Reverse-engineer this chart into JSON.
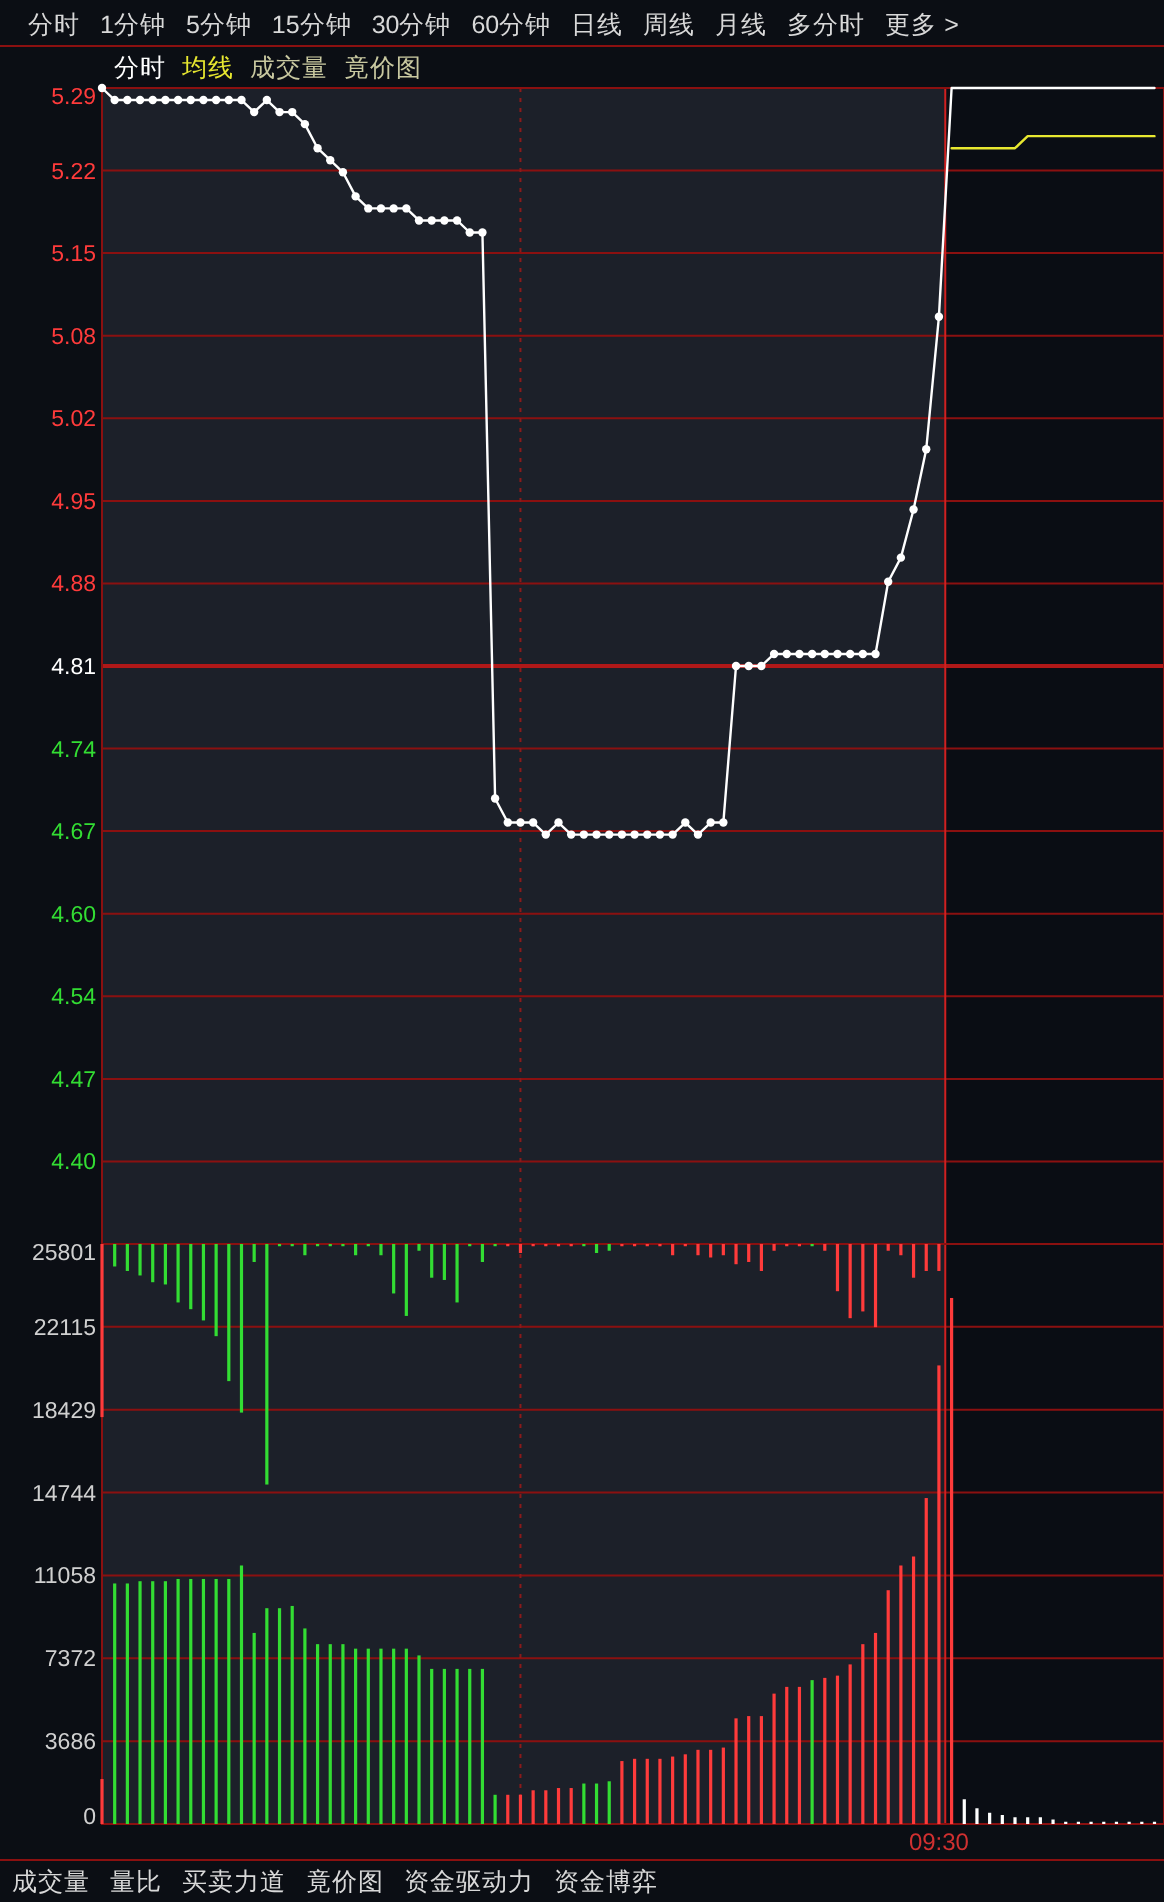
{
  "chart_data": [
    {
      "type": "other",
      "annotations": [
        "分时",
        "1分钟",
        "5分钟",
        "15分钟",
        "30分钟",
        "60分钟",
        "日线",
        "周线",
        "月线",
        "多分时",
        "更多 >"
      ]
    },
    {
      "type": "line",
      "tick_labels": "y",
      "legend": "top left",
      "grid": "y",
      "annotations": [
        "成交量",
        "竟价图"
      ],
      "categories": [
        null,
        null,
        null,
        null,
        null,
        null,
        null,
        null,
        null,
        null,
        null,
        null,
        null,
        null,
        null,
        null,
        null,
        null,
        null,
        null,
        null,
        null,
        null,
        null,
        null,
        null,
        null,
        null,
        null,
        null,
        null,
        null,
        null,
        null,
        null,
        null,
        null,
        null,
        null,
        null,
        null,
        null,
        null,
        null,
        null,
        null,
        null,
        null,
        null,
        null,
        null,
        null,
        null,
        null,
        null,
        null,
        null,
        null,
        null,
        null,
        null,
        null,
        null,
        null,
        null,
        null,
        null,
        null,
        null,
        null,
        null,
        null,
        null,
        null,
        null,
        null,
        null,
        null,
        null,
        null,
        null,
        null,
        null,
        null
      ],
      "ylim": [
        4.33,
        5.29
      ],
      "yticks": [
        {
          "value": 4.33,
          "label": null
        },
        {
          "value": 4.3986,
          "label": "4.40"
        },
        {
          "value": 4.4671,
          "label": "4.47"
        },
        {
          "value": 4.5357,
          "label": "4.54"
        },
        {
          "value": 4.6043,
          "label": "4.60"
        },
        {
          "value": 4.6729,
          "label": "4.67"
        },
        {
          "value": 4.7414,
          "label": "4.74"
        },
        4.81,
        {
          "value": 4.8786,
          "label": "4.88"
        },
        {
          "value": 4.9471,
          "label": "4.95"
        },
        {
          "value": 5.0157,
          "label": "5.02"
        },
        {
          "value": 5.0843,
          "label": "5.08"
        },
        {
          "value": 5.1529,
          "label": "5.15"
        },
        {
          "value": 5.2214,
          "label": "5.22"
        },
        5.29
      ],
      "ref_lines": [
        {
          "axis": "y",
          "value": 4.81,
          "color": "#b01818"
        }
      ],
      "series": [
        {
          "name": "分时",
          "color": "#ffffff",
          "marker": "circle",
          "values": [
            5.29,
            5.28,
            5.28,
            5.28,
            5.28,
            5.28,
            5.28,
            5.28,
            5.28,
            5.28,
            5.28,
            5.28,
            5.27,
            5.28,
            5.27,
            5.27,
            5.26,
            5.24,
            5.23,
            5.22,
            5.2,
            5.19,
            5.19,
            5.19,
            5.19,
            5.18,
            5.18,
            5.18,
            5.18,
            5.17,
            5.17,
            4.7,
            4.68,
            4.68,
            4.68,
            4.67,
            4.68,
            4.67,
            4.67,
            4.67,
            4.67,
            4.67,
            4.67,
            4.67,
            4.67,
            4.67,
            4.68,
            4.67,
            4.68,
            4.68,
            4.81,
            4.81,
            4.81,
            4.82,
            4.82,
            4.82,
            4.82,
            4.82,
            4.82,
            4.82,
            4.82,
            4.82,
            4.88,
            4.9,
            4.94,
            4.99,
            5.1,
            null,
            null,
            null,
            null,
            null,
            null,
            null,
            null,
            null,
            null,
            null,
            null,
            null,
            null,
            null,
            null,
            null
          ]
        },
        {
          "color": "#ffffff",
          "values": [
            null,
            null,
            null,
            null,
            null,
            null,
            null,
            null,
            null,
            null,
            null,
            null,
            null,
            null,
            null,
            null,
            null,
            null,
            null,
            null,
            null,
            null,
            null,
            null,
            null,
            null,
            null,
            null,
            null,
            null,
            null,
            null,
            null,
            null,
            null,
            null,
            null,
            null,
            null,
            null,
            null,
            null,
            null,
            null,
            null,
            null,
            null,
            null,
            null,
            null,
            null,
            null,
            null,
            null,
            null,
            null,
            null,
            null,
            null,
            null,
            null,
            null,
            null,
            null,
            null,
            null,
            5.1,
            5.29,
            5.29,
            5.29,
            5.29,
            5.29,
            5.29,
            5.29,
            5.29,
            5.29,
            5.29,
            5.29,
            5.29,
            5.29,
            5.29,
            5.29,
            5.29,
            5.29
          ]
        },
        {
          "name": "均线",
          "color": "#e8e830",
          "values": [
            null,
            null,
            null,
            null,
            null,
            null,
            null,
            null,
            null,
            null,
            null,
            null,
            null,
            null,
            null,
            null,
            null,
            null,
            null,
            null,
            null,
            null,
            null,
            null,
            null,
            null,
            null,
            null,
            null,
            null,
            null,
            null,
            null,
            null,
            null,
            null,
            null,
            null,
            null,
            null,
            null,
            null,
            null,
            null,
            null,
            null,
            null,
            null,
            null,
            null,
            null,
            null,
            null,
            null,
            null,
            null,
            null,
            null,
            null,
            null,
            null,
            null,
            null,
            null,
            null,
            null,
            null,
            5.24,
            5.24,
            5.24,
            5.24,
            5.24,
            5.24,
            5.25,
            5.25,
            5.25,
            5.25,
            5.25,
            5.25,
            5.25,
            5.25,
            5.25,
            5.25,
            5.25
          ]
        }
      ]
    },
    {
      "type": "bar",
      "grid": "y",
      "categories": [
        null,
        null,
        null,
        null,
        null,
        null,
        null,
        null,
        null,
        null,
        null,
        null,
        null,
        null,
        null,
        null,
        null,
        null,
        null,
        null,
        null,
        null,
        null,
        null,
        null,
        null,
        null,
        null,
        null,
        null,
        null,
        null,
        null,
        null,
        null,
        null,
        null,
        null,
        null,
        null,
        null,
        null,
        null,
        null,
        null,
        null,
        null,
        null,
        null,
        null,
        null,
        null,
        null,
        null,
        null,
        null,
        null,
        null,
        null,
        null,
        null,
        null,
        null,
        null,
        null,
        null,
        "09:30",
        null,
        null,
        null,
        null,
        null,
        null,
        null,
        null,
        null,
        null,
        null,
        null,
        null,
        null,
        null,
        null,
        null
      ],
      "ylim": [
        0,
        25801
      ],
      "yticks": [
        0,
        3686,
        7372,
        11058,
        14744,
        18429,
        22115,
        25801
      ],
      "series": [
        {
          "values": [
            2000,
            10700,
            10700,
            10800,
            10800,
            10800,
            10900,
            10900,
            10900,
            10900,
            10900,
            11500,
            8500,
            9600,
            9600,
            9700,
            8700,
            8000,
            8000,
            8000,
            7800,
            7800,
            7800,
            7800,
            7800,
            7500,
            6900,
            6900,
            6900,
            6900,
            6900,
            1300,
            1300,
            1300,
            1500,
            1500,
            1600,
            1600,
            1800,
            1800,
            1900,
            2800,
            2900,
            2900,
            2900,
            3000,
            3100,
            3300,
            3300,
            3400,
            4700,
            4800,
            4800,
            5800,
            6100,
            6100,
            6400,
            6500,
            6600,
            7100,
            8000,
            8500,
            10400,
            11500,
            11900,
            14500,
            20400,
            23400,
            1100,
            700,
            500,
            400,
            300,
            300,
            300,
            200,
            100,
            100,
            100,
            100,
            100,
            100,
            100,
            100
          ],
          "colors": [
            "#ff3b3b",
            "#33dd33",
            "#33dd33",
            "#33dd33",
            "#33dd33",
            "#33dd33",
            "#33dd33",
            "#33dd33",
            "#33dd33",
            "#33dd33",
            "#33dd33",
            "#33dd33",
            "#33dd33",
            "#33dd33",
            "#33dd33",
            "#33dd33",
            "#33dd33",
            "#33dd33",
            "#33dd33",
            "#33dd33",
            "#33dd33",
            "#33dd33",
            "#33dd33",
            "#33dd33",
            "#33dd33",
            "#33dd33",
            "#33dd33",
            "#33dd33",
            "#33dd33",
            "#33dd33",
            "#33dd33",
            "#33dd33",
            "#ff3b3b",
            "#ff3b3b",
            "#ff3b3b",
            "#ff3b3b",
            "#ff3b3b",
            "#ff3b3b",
            "#33dd33",
            "#33dd33",
            "#33dd33",
            "#ff3b3b",
            "#ff3b3b",
            "#ff3b3b",
            "#ff3b3b",
            "#ff3b3b",
            "#ff3b3b",
            "#ff3b3b",
            "#ff3b3b",
            "#ff3b3b",
            "#ff3b3b",
            "#ff3b3b",
            "#ff3b3b",
            "#ff3b3b",
            "#ff3b3b",
            "#ff3b3b",
            "#33dd33",
            "#ff3b3b",
            "#ff3b3b",
            "#ff3b3b",
            "#ff3b3b",
            "#ff3b3b",
            "#ff3b3b",
            "#ff3b3b",
            "#ff3b3b",
            "#ff3b3b",
            "#ff3b3b",
            "#ff3b3b",
            "#ffffff",
            "#ffffff",
            "#ffffff",
            "#ffffff",
            "#ffffff",
            "#ffffff",
            "#ffffff",
            "#ffffff",
            "#ffffff",
            "#ffffff",
            "#ffffff",
            "#ffffff",
            "#ffffff",
            "#ffffff",
            "#ffffff",
            "#ffffff"
          ]
        },
        {
          "base": [
            25801,
            25801,
            25801,
            25801,
            25801,
            25801,
            25801,
            25801,
            25801,
            25801,
            25801,
            25801,
            25801,
            25801,
            25801,
            25801,
            25801,
            25801,
            25801,
            25801,
            25801,
            25801,
            25801,
            25801,
            25801,
            25801,
            25801,
            25801,
            25801,
            25801,
            25801,
            25801,
            25801,
            25801,
            25801,
            25801,
            25801,
            25801,
            25801,
            25801,
            25801,
            25801,
            25801,
            25801,
            25801,
            25801,
            25801,
            25801,
            25801,
            25801,
            25801,
            25801,
            25801,
            25801,
            25801,
            25801,
            25801,
            25801,
            25801,
            25801,
            25801,
            25801,
            25801,
            25801,
            25801,
            25801,
            25801,
            null,
            null,
            null,
            null,
            null,
            null,
            null,
            null,
            null,
            null,
            null,
            null,
            null,
            null,
            null,
            null,
            null
          ],
          "values": [
            -7700,
            -1000,
            -1200,
            -1400,
            -1700,
            -1800,
            -2600,
            -2900,
            -3400,
            -4100,
            -6100,
            -7500,
            -800,
            -10700,
            -100,
            -100,
            -500,
            -100,
            -100,
            -100,
            -500,
            -100,
            -500,
            -2200,
            -3200,
            -300,
            -1500,
            -1600,
            -2600,
            -100,
            -800,
            -100,
            -100,
            -400,
            -100,
            -100,
            -100,
            -100,
            -100,
            -400,
            -300,
            -100,
            -100,
            -100,
            -100,
            -500,
            -100,
            -500,
            -600,
            -500,
            -900,
            -800,
            -1200,
            -300,
            -100,
            -100,
            -100,
            -300,
            -2100,
            -3300,
            -3000,
            -3700,
            -300,
            -500,
            -1500,
            -1200,
            -1200,
            null,
            null,
            null,
            null,
            null,
            null,
            null,
            null,
            null,
            null,
            null,
            null,
            null,
            null,
            null,
            null,
            null
          ],
          "colors": [
            "#ff3b3b",
            "#33dd33",
            "#33dd33",
            "#33dd33",
            "#33dd33",
            "#33dd33",
            "#33dd33",
            "#33dd33",
            "#33dd33",
            "#33dd33",
            "#33dd33",
            "#33dd33",
            "#33dd33",
            "#33dd33",
            "#33dd33",
            "#33dd33",
            "#33dd33",
            "#33dd33",
            "#33dd33",
            "#33dd33",
            "#33dd33",
            "#33dd33",
            "#33dd33",
            "#33dd33",
            "#33dd33",
            "#33dd33",
            "#33dd33",
            "#33dd33",
            "#33dd33",
            "#33dd33",
            "#33dd33",
            "#33dd33",
            "#ff3b3b",
            "#ff3b3b",
            "#ff3b3b",
            "#ff3b3b",
            "#ff3b3b",
            "#ff3b3b",
            "#33dd33",
            "#33dd33",
            "#33dd33",
            "#ff3b3b",
            "#ff3b3b",
            "#ff3b3b",
            "#ff3b3b",
            "#ff3b3b",
            "#ff3b3b",
            "#ff3b3b",
            "#ff3b3b",
            "#ff3b3b",
            "#ff3b3b",
            "#ff3b3b",
            "#ff3b3b",
            "#ff3b3b",
            "#ff3b3b",
            "#ff3b3b",
            "#33dd33",
            "#ff3b3b",
            "#ff3b3b",
            "#ff3b3b",
            "#ff3b3b",
            "#ff3b3b",
            "#ff3b3b",
            "#ff3b3b",
            "#ff3b3b",
            "#ff3b3b",
            "#ff3b3b",
            null,
            null,
            null,
            null,
            null,
            null,
            null,
            null,
            null,
            null,
            null,
            null,
            null,
            null,
            null,
            null,
            null
          ]
        }
      ]
    },
    {
      "type": "other",
      "annotations": [
        "成交量",
        "量比",
        "买卖力道",
        "竟价图",
        "资金驱动力",
        "资金博弈"
      ]
    }
  ]
}
